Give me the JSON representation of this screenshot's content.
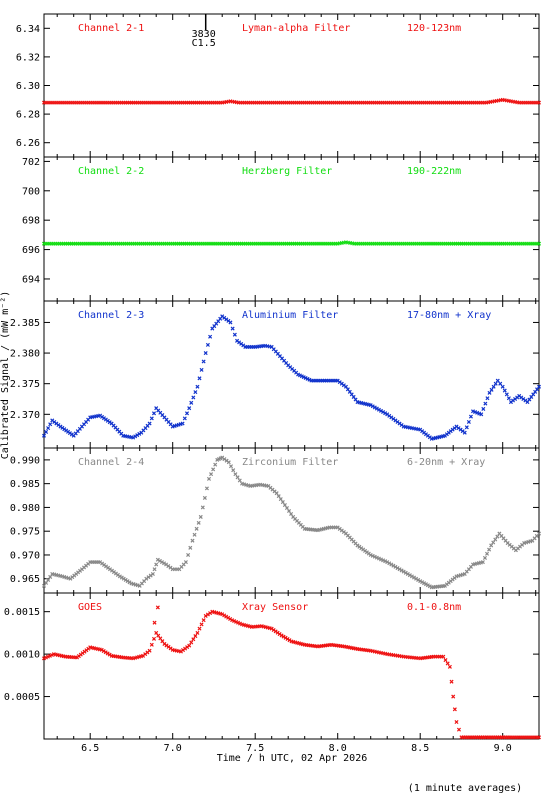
{
  "figure": {
    "ylabel": "Calibrated Signal / (mW m⁻²)",
    "xlabel": "Time / h UTC, 02 Apr 2026",
    "footnote": "(1 minute averages)",
    "xlim": [
      6.22,
      9.22
    ],
    "xticks": [
      "6.5",
      "7.0",
      "7.5",
      "8.0",
      "8.5",
      "9.0"
    ],
    "xtick_values": [
      6.5,
      7.0,
      7.5,
      8.0,
      8.5,
      9.0
    ]
  },
  "flare_marker": {
    "time": 7.2,
    "labels": [
      "3830",
      "C1.5"
    ]
  },
  "chart_data": [
    {
      "type": "scatter",
      "panel": 1,
      "title": "Channel 2-1",
      "filter": "Lyman-alpha Filter",
      "band": "120-123nm",
      "color": "#ee1111",
      "ylim": [
        6.25,
        6.35
      ],
      "yticks": [
        "6.26",
        "6.28",
        "6.30",
        "6.32",
        "6.34"
      ],
      "ytick_values": [
        6.26,
        6.28,
        6.3,
        6.32,
        6.34
      ],
      "points": [
        [
          6.22,
          6.288
        ],
        [
          6.5,
          6.288
        ],
        [
          7.0,
          6.288
        ],
        [
          7.3,
          6.288
        ],
        [
          7.35,
          6.289
        ],
        [
          7.4,
          6.288
        ],
        [
          7.8,
          6.288
        ],
        [
          8.2,
          6.288
        ],
        [
          8.6,
          6.288
        ],
        [
          8.9,
          6.288
        ],
        [
          8.95,
          6.289
        ],
        [
          9.0,
          6.29
        ],
        [
          9.05,
          6.289
        ],
        [
          9.1,
          6.288
        ],
        [
          9.22,
          6.288
        ]
      ]
    },
    {
      "type": "scatter",
      "panel": 2,
      "title": "Channel 2-2",
      "filter": "Herzberg Filter",
      "band": "190-222nm",
      "color": "#11dd11",
      "ylim": [
        692.5,
        702.3
      ],
      "yticks": [
        "694",
        "696",
        "698",
        "700",
        "702"
      ],
      "ytick_values": [
        694,
        696,
        698,
        700,
        702
      ],
      "points": [
        [
          6.22,
          696.4
        ],
        [
          6.6,
          696.4
        ],
        [
          7.0,
          696.4
        ],
        [
          7.5,
          696.4
        ],
        [
          8.0,
          696.4
        ],
        [
          8.05,
          696.5
        ],
        [
          8.1,
          696.4
        ],
        [
          8.5,
          696.4
        ],
        [
          9.0,
          696.4
        ],
        [
          9.22,
          696.4
        ]
      ]
    },
    {
      "type": "scatter",
      "panel": 3,
      "title": "Channel 2-3",
      "filter": "Aluminium Filter",
      "band": "17-80nm + Xray",
      "color": "#1133cc",
      "ylim": [
        2.3645,
        2.3885
      ],
      "yticks": [
        "2.370",
        "2.375",
        "2.380",
        "2.385"
      ],
      "ytick_values": [
        2.37,
        2.375,
        2.38,
        2.385
      ],
      "points": [
        [
          6.22,
          2.3665
        ],
        [
          6.27,
          2.369
        ],
        [
          6.32,
          2.368
        ],
        [
          6.4,
          2.3665
        ],
        [
          6.5,
          2.3695
        ],
        [
          6.56,
          2.3698
        ],
        [
          6.63,
          2.3685
        ],
        [
          6.7,
          2.3665
        ],
        [
          6.76,
          2.3662
        ],
        [
          6.81,
          2.367
        ],
        [
          6.86,
          2.3685
        ],
        [
          6.9,
          2.371
        ],
        [
          6.95,
          2.3695
        ],
        [
          7.0,
          2.368
        ],
        [
          7.06,
          2.3685
        ],
        [
          7.1,
          2.371
        ],
        [
          7.15,
          2.3745
        ],
        [
          7.2,
          2.38
        ],
        [
          7.24,
          2.384
        ],
        [
          7.3,
          2.386
        ],
        [
          7.35,
          2.385
        ],
        [
          7.39,
          2.382
        ],
        [
          7.44,
          2.381
        ],
        [
          7.5,
          2.381
        ],
        [
          7.56,
          2.3812
        ],
        [
          7.6,
          2.381
        ],
        [
          7.65,
          2.3795
        ],
        [
          7.7,
          2.378
        ],
        [
          7.76,
          2.3765
        ],
        [
          7.84,
          2.3755
        ],
        [
          7.92,
          2.3755
        ],
        [
          8.0,
          2.3755
        ],
        [
          8.05,
          2.3745
        ],
        [
          8.12,
          2.372
        ],
        [
          8.2,
          2.3715
        ],
        [
          8.3,
          2.37
        ],
        [
          8.4,
          2.368
        ],
        [
          8.5,
          2.3675
        ],
        [
          8.57,
          2.366
        ],
        [
          8.65,
          2.3665
        ],
        [
          8.72,
          2.368
        ],
        [
          8.77,
          2.367
        ],
        [
          8.82,
          2.3705
        ],
        [
          8.87,
          2.37
        ],
        [
          8.92,
          2.3735
        ],
        [
          8.97,
          2.3755
        ],
        [
          9.0,
          2.3745
        ],
        [
          9.05,
          2.372
        ],
        [
          9.1,
          2.373
        ],
        [
          9.15,
          2.372
        ],
        [
          9.22,
          2.3745
        ]
      ]
    },
    {
      "type": "scatter",
      "panel": 4,
      "title": "Channel 2-4",
      "filter": "Zirconium Filter",
      "band": "6-20nm + Xray",
      "color": "#888888",
      "ylim": [
        0.962,
        0.9925
      ],
      "yticks": [
        "0.965",
        "0.970",
        "0.975",
        "0.980",
        "0.985",
        "0.990"
      ],
      "ytick_values": [
        0.965,
        0.97,
        0.975,
        0.98,
        0.985,
        0.99
      ],
      "points": [
        [
          6.22,
          0.9635
        ],
        [
          6.27,
          0.966
        ],
        [
          6.33,
          0.9655
        ],
        [
          6.38,
          0.965
        ],
        [
          6.45,
          0.967
        ],
        [
          6.5,
          0.9685
        ],
        [
          6.56,
          0.9685
        ],
        [
          6.62,
          0.967
        ],
        [
          6.68,
          0.9655
        ],
        [
          6.75,
          0.964
        ],
        [
          6.8,
          0.9635
        ],
        [
          6.84,
          0.965
        ],
        [
          6.88,
          0.966
        ],
        [
          6.91,
          0.969
        ],
        [
          6.96,
          0.968
        ],
        [
          7.0,
          0.967
        ],
        [
          7.04,
          0.967
        ],
        [
          7.08,
          0.9685
        ],
        [
          7.12,
          0.973
        ],
        [
          7.17,
          0.978
        ],
        [
          7.22,
          0.986
        ],
        [
          7.27,
          0.99
        ],
        [
          7.3,
          0.9905
        ],
        [
          7.34,
          0.9895
        ],
        [
          7.38,
          0.987
        ],
        [
          7.42,
          0.985
        ],
        [
          7.47,
          0.9845
        ],
        [
          7.53,
          0.9848
        ],
        [
          7.58,
          0.9845
        ],
        [
          7.63,
          0.983
        ],
        [
          7.68,
          0.9805
        ],
        [
          7.73,
          0.978
        ],
        [
          7.8,
          0.9755
        ],
        [
          7.88,
          0.9752
        ],
        [
          7.95,
          0.9758
        ],
        [
          8.0,
          0.9758
        ],
        [
          8.05,
          0.9745
        ],
        [
          8.12,
          0.972
        ],
        [
          8.2,
          0.97
        ],
        [
          8.3,
          0.9685
        ],
        [
          8.4,
          0.9665
        ],
        [
          8.5,
          0.9645
        ],
        [
          8.57,
          0.9632
        ],
        [
          8.65,
          0.9635
        ],
        [
          8.72,
          0.9655
        ],
        [
          8.77,
          0.966
        ],
        [
          8.82,
          0.968
        ],
        [
          8.88,
          0.9685
        ],
        [
          8.93,
          0.972
        ],
        [
          8.98,
          0.9745
        ],
        [
          9.03,
          0.9725
        ],
        [
          9.08,
          0.971
        ],
        [
          9.13,
          0.9725
        ],
        [
          9.18,
          0.973
        ],
        [
          9.22,
          0.9745
        ]
      ]
    },
    {
      "type": "scatter",
      "panel": 5,
      "title": "GOES",
      "filter": "Xray Sensor",
      "band": "0.1-0.8nm",
      "color": "#ee1111",
      "ylim": [
        0.0,
        0.00172
      ],
      "yticks": [
        "0.0005",
        "0.0010",
        "0.0015"
      ],
      "ytick_values": [
        0.0005,
        0.001,
        0.0015
      ],
      "points": [
        [
          6.22,
          0.00095
        ],
        [
          6.28,
          0.001
        ],
        [
          6.35,
          0.00097
        ],
        [
          6.42,
          0.00096
        ],
        [
          6.5,
          0.00108
        ],
        [
          6.57,
          0.00105
        ],
        [
          6.63,
          0.00098
        ],
        [
          6.7,
          0.00096
        ],
        [
          6.76,
          0.00095
        ],
        [
          6.82,
          0.00098
        ],
        [
          6.86,
          0.00104
        ],
        [
          6.9,
          0.00125
        ],
        [
          6.95,
          0.00112
        ],
        [
          7.0,
          0.00105
        ],
        [
          7.05,
          0.00103
        ],
        [
          7.1,
          0.0011
        ],
        [
          7.15,
          0.00125
        ],
        [
          7.2,
          0.00145
        ],
        [
          7.24,
          0.0015
        ],
        [
          7.3,
          0.00147
        ],
        [
          7.36,
          0.0014
        ],
        [
          7.42,
          0.00135
        ],
        [
          7.48,
          0.00132
        ],
        [
          7.54,
          0.00133
        ],
        [
          7.6,
          0.0013
        ],
        [
          7.66,
          0.00122
        ],
        [
          7.72,
          0.00115
        ],
        [
          7.8,
          0.00111
        ],
        [
          7.88,
          0.00109
        ],
        [
          7.96,
          0.00111
        ],
        [
          8.04,
          0.00109
        ],
        [
          8.12,
          0.00106
        ],
        [
          8.2,
          0.00104
        ],
        [
          8.3,
          0.001
        ],
        [
          8.4,
          0.00097
        ],
        [
          8.5,
          0.00095
        ],
        [
          8.58,
          0.00097
        ],
        [
          8.64,
          0.00097
        ],
        [
          8.68,
          0.00085
        ],
        [
          8.7,
          0.0005
        ],
        [
          8.72,
          0.0002
        ],
        [
          8.75,
          2e-05
        ],
        [
          8.9,
          2e-05
        ],
        [
          9.05,
          2e-05
        ],
        [
          9.22,
          2e-05
        ]
      ],
      "outliers": [
        [
          6.91,
          0.00155
        ],
        [
          6.89,
          0.00137
        ]
      ]
    }
  ]
}
